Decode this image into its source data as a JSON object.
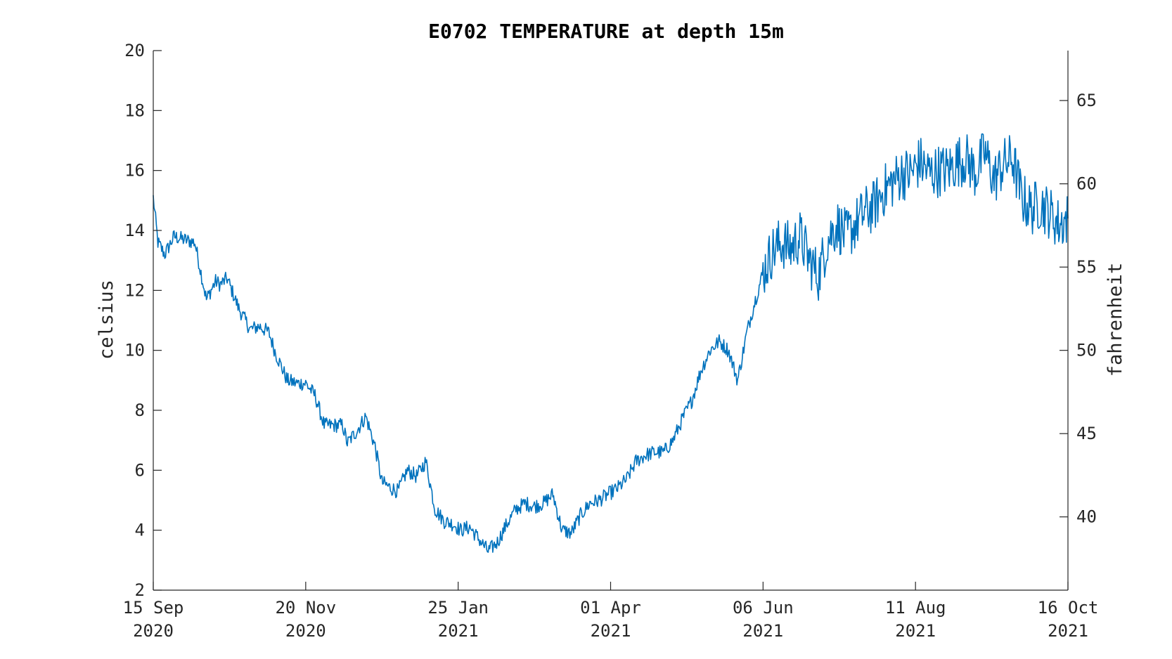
{
  "chart_data": {
    "type": "line",
    "title": "E0702 TEMPERATURE at depth 15m",
    "ylabel": "celsius",
    "ylabel_right": "fahrenheit",
    "xlim": [
      "2020-09-15",
      "2021-10-16"
    ],
    "ylim": [
      2,
      20
    ],
    "ylim_right_fahrenheit": [
      35.6,
      68
    ],
    "grid": false,
    "legend": "none",
    "x_ticks": [
      {
        "date": "2020-09-15",
        "line1": "15 Sep",
        "line2": "2020"
      },
      {
        "date": "2020-11-20",
        "line1": "20 Nov",
        "line2": "2020"
      },
      {
        "date": "2021-01-25",
        "line1": "25 Jan",
        "line2": "2021"
      },
      {
        "date": "2021-04-01",
        "line1": "01 Apr",
        "line2": "2021"
      },
      {
        "date": "2021-06-06",
        "line1": "06 Jun",
        "line2": "2021"
      },
      {
        "date": "2021-08-11",
        "line1": "11 Aug",
        "line2": "2021"
      },
      {
        "date": "2021-10-16",
        "line1": "16 Oct",
        "line2": "2021"
      }
    ],
    "y_ticks": [
      "2",
      "4",
      "6",
      "8",
      "10",
      "12",
      "14",
      "16",
      "18",
      "20"
    ],
    "y_ticks_right": [
      "40",
      "45",
      "50",
      "55",
      "60",
      "65"
    ],
    "series": [
      {
        "color": "#0072BD",
        "x": [
          "2020-09-15",
          "2020-09-17",
          "2020-09-20",
          "2020-09-24",
          "2020-09-28",
          "2020-10-03",
          "2020-10-08",
          "2020-10-12",
          "2020-10-14",
          "2020-10-17",
          "2020-10-22",
          "2020-10-27",
          "2020-10-31",
          "2020-11-04",
          "2020-11-07",
          "2020-11-12",
          "2020-11-16",
          "2020-11-20",
          "2020-11-24",
          "2020-11-28",
          "2020-12-02",
          "2020-12-06",
          "2020-12-08",
          "2020-12-12",
          "2020-12-16",
          "2020-12-20",
          "2020-12-23",
          "2020-12-27",
          "2020-12-30",
          "2021-01-03",
          "2021-01-07",
          "2021-01-11",
          "2021-01-15",
          "2021-01-19",
          "2021-01-23",
          "2021-01-26",
          "2021-01-30",
          "2021-02-03",
          "2021-02-07",
          "2021-02-11",
          "2021-02-15",
          "2021-02-19",
          "2021-02-23",
          "2021-02-27",
          "2021-03-03",
          "2021-03-07",
          "2021-03-11",
          "2021-03-15",
          "2021-03-19",
          "2021-03-23",
          "2021-03-27",
          "2021-03-31",
          "2021-04-04",
          "2021-04-08",
          "2021-04-12",
          "2021-04-16",
          "2021-04-20",
          "2021-04-24",
          "2021-04-28",
          "2021-05-02",
          "2021-05-06",
          "2021-05-10",
          "2021-05-14",
          "2021-05-18",
          "2021-05-22",
          "2021-05-26",
          "2021-05-30",
          "2021-06-02",
          "2021-06-06",
          "2021-06-10",
          "2021-06-14",
          "2021-06-18",
          "2021-06-22",
          "2021-06-26",
          "2021-06-30",
          "2021-07-04",
          "2021-07-08",
          "2021-07-12",
          "2021-07-16",
          "2021-07-20",
          "2021-07-24",
          "2021-07-28",
          "2021-08-01",
          "2021-08-05",
          "2021-08-09",
          "2021-08-13",
          "2021-08-17",
          "2021-08-21",
          "2021-08-25",
          "2021-08-29",
          "2021-09-02",
          "2021-09-06",
          "2021-09-10",
          "2021-09-14",
          "2021-09-18",
          "2021-09-22",
          "2021-09-26",
          "2021-09-30",
          "2021-10-04",
          "2021-10-08",
          "2021-10-12",
          "2021-10-16"
        ],
        "values": [
          15.1,
          13.6,
          13.2,
          13.8,
          13.7,
          13.6,
          11.7,
          12.3,
          12.2,
          12.4,
          11.4,
          10.7,
          10.8,
          10.6,
          9.9,
          9.0,
          8.9,
          8.9,
          8.5,
          7.5,
          7.5,
          7.5,
          6.9,
          7.3,
          7.8,
          6.8,
          5.6,
          5.4,
          5.3,
          6.0,
          5.8,
          6.3,
          4.7,
          4.3,
          4.2,
          4.0,
          4.1,
          3.7,
          3.3,
          3.6,
          4.2,
          4.7,
          4.9,
          4.8,
          4.9,
          5.2,
          4.0,
          3.9,
          4.5,
          4.9,
          5.0,
          5.2,
          5.4,
          5.7,
          6.3,
          6.5,
          6.6,
          6.6,
          7.0,
          7.7,
          8.3,
          9.3,
          10.0,
          10.3,
          10.0,
          9.0,
          10.6,
          11.5,
          12.6,
          13.3,
          13.6,
          13.4,
          13.8,
          13.0,
          12.5,
          13.7,
          14.2,
          13.8,
          14.2,
          14.6,
          14.8,
          15.3,
          15.6,
          15.9,
          15.9,
          16.3,
          15.9,
          16.0,
          16.0,
          16.3,
          16.4,
          15.9,
          16.6,
          15.7,
          16.2,
          16.4,
          15.1,
          14.7,
          14.9,
          14.6,
          14.2,
          14.4
        ]
      }
    ]
  }
}
